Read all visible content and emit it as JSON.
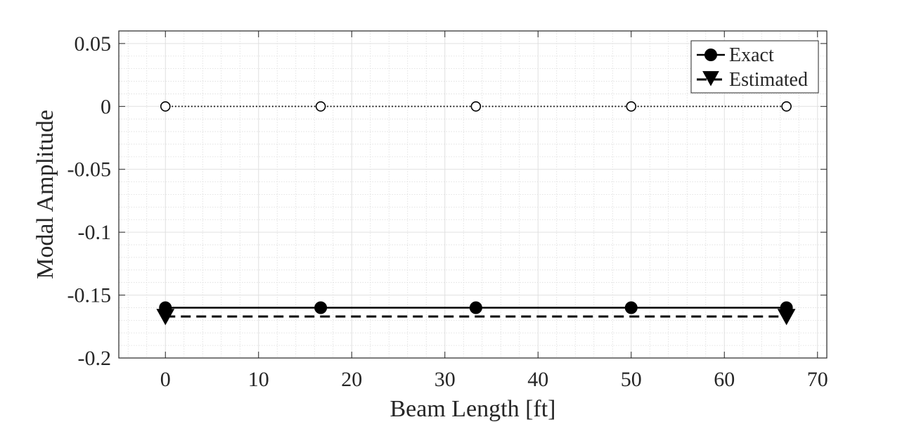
{
  "chart_data": {
    "type": "line",
    "xlabel": "Beam Length [ft]",
    "ylabel": "Modal Amplitude",
    "xlim": [
      -5,
      71
    ],
    "ylim": [
      -0.2,
      0.06
    ],
    "xticks": [
      0,
      10,
      20,
      30,
      40,
      50,
      60,
      70
    ],
    "yticks": [
      0.05,
      0,
      -0.05,
      -0.1,
      -0.15,
      -0.2
    ],
    "xtick_labels": [
      "0",
      "10",
      "20",
      "30",
      "40",
      "50",
      "60",
      "70"
    ],
    "ytick_labels": [
      "0.05",
      "0",
      "-0.05",
      "-0.1",
      "-0.15",
      "-0.2"
    ],
    "grid": true,
    "minor_grid": true,
    "legend_position": "top-right",
    "series": [
      {
        "name": "Exact",
        "x": [
          0,
          16.67,
          33.33,
          50,
          66.67
        ],
        "y": [
          -0.16,
          -0.16,
          -0.16,
          -0.16,
          -0.16
        ],
        "line": "solid",
        "marker": "filled-circle",
        "color": "#000000"
      },
      {
        "name": "Estimated",
        "x": [
          0,
          66.67
        ],
        "y": [
          -0.167,
          -0.167
        ],
        "line": "dashed",
        "marker": "filled-triangle-down",
        "color": "#000000"
      },
      {
        "x": [
          0,
          16.67,
          33.33,
          50,
          66.67
        ],
        "y": [
          0,
          0,
          0,
          0,
          0
        ],
        "line": "dotted",
        "marker": "open-circle",
        "color": "#000000"
      }
    ]
  }
}
